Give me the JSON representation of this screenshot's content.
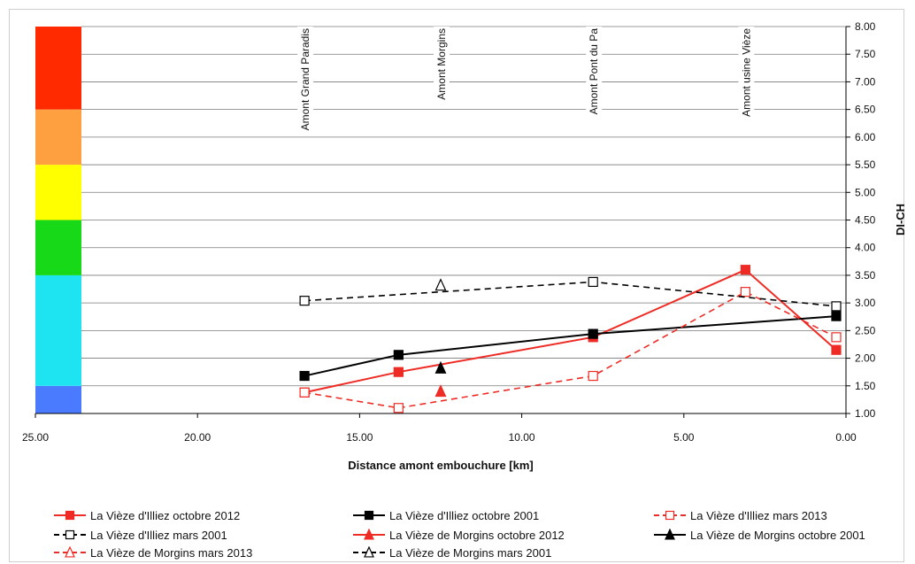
{
  "chart_data": {
    "type": "line",
    "xlabel": "Distance amont embouchure [km]",
    "ylabel": "DI-CH",
    "xlim": [
      25,
      0
    ],
    "ylim": [
      1,
      8
    ],
    "x_ticks": [
      "25.00",
      "20.00",
      "15.00",
      "10.00",
      "5.00",
      "0.00"
    ],
    "y_ticks": [
      "1.00",
      "1.50",
      "2.00",
      "2.50",
      "3.00",
      "3.50",
      "4.00",
      "4.50",
      "5.00",
      "5.50",
      "6.00",
      "6.50",
      "7.00",
      "7.50",
      "8.00"
    ],
    "grid": "horizontal",
    "legend_position": "bottom",
    "annotations": [
      {
        "label": "Amont Grand Paradis",
        "x": 16.7
      },
      {
        "label": "Amont Morgins",
        "x": 12.5
      },
      {
        "label": "Amont Pont du Pa",
        "x": 7.8
      },
      {
        "label": "Amont usine Vièze",
        "x": 3.1
      }
    ],
    "quality_bands": [
      {
        "from": 1.0,
        "to": 1.5,
        "color": "#4a7bff"
      },
      {
        "from": 1.5,
        "to": 3.5,
        "color": "#1ee3f0"
      },
      {
        "from": 3.5,
        "to": 4.5,
        "color": "#17d917"
      },
      {
        "from": 4.5,
        "to": 5.5,
        "color": "#ffff00"
      },
      {
        "from": 5.5,
        "to": 6.5,
        "color": "#ffa040"
      },
      {
        "from": 6.5,
        "to": 8.0,
        "color": "#ff2a00"
      }
    ],
    "series": [
      {
        "name": "La Vièze d'Illiez octobre 2012",
        "color": "#ee2b24",
        "dash": "solid",
        "marker": "square-filled",
        "points": [
          [
            16.7,
            1.38
          ],
          [
            13.8,
            1.75
          ],
          [
            7.8,
            2.38
          ],
          [
            3.1,
            3.6
          ],
          [
            0.3,
            2.15
          ]
        ]
      },
      {
        "name": "La Vièze d'Illiez octobre 2001",
        "color": "#000000",
        "dash": "solid",
        "marker": "square-filled",
        "points": [
          [
            16.7,
            1.68
          ],
          [
            13.8,
            2.06
          ],
          [
            7.8,
            2.44
          ],
          [
            0.3,
            2.76
          ]
        ]
      },
      {
        "name": "La Vièze d'Illiez mars 2013",
        "color": "#ee2b24",
        "dash": "dashed",
        "marker": "square-open",
        "points": [
          [
            16.7,
            1.38
          ],
          [
            13.8,
            1.1
          ],
          [
            7.8,
            1.68
          ],
          [
            3.1,
            3.2
          ],
          [
            0.3,
            2.38
          ]
        ]
      },
      {
        "name": "La Vièze d'Illiez mars 2001",
        "color": "#000000",
        "dash": "dashed",
        "marker": "square-open",
        "points": [
          [
            16.7,
            3.04
          ],
          [
            7.8,
            3.38
          ],
          [
            0.3,
            2.94
          ]
        ]
      },
      {
        "name": "La Vièze de Morgins octobre 2012",
        "color": "#ee2b24",
        "dash": "solid",
        "marker": "triangle-filled",
        "points": [
          [
            12.5,
            1.4
          ]
        ]
      },
      {
        "name": "La Vièze de Morgins octobre 2001",
        "color": "#000000",
        "dash": "solid",
        "marker": "triangle-filled",
        "points": [
          [
            12.5,
            1.82
          ]
        ]
      },
      {
        "name": "La Vièze de Morgins mars 2013",
        "color": "#ee2b24",
        "dash": "dashed",
        "marker": "triangle-open",
        "points": []
      },
      {
        "name": "La Vièze de Morgins mars 2001",
        "color": "#000000",
        "dash": "dashed",
        "marker": "triangle-open",
        "points": [
          [
            12.5,
            3.32
          ]
        ]
      }
    ]
  }
}
